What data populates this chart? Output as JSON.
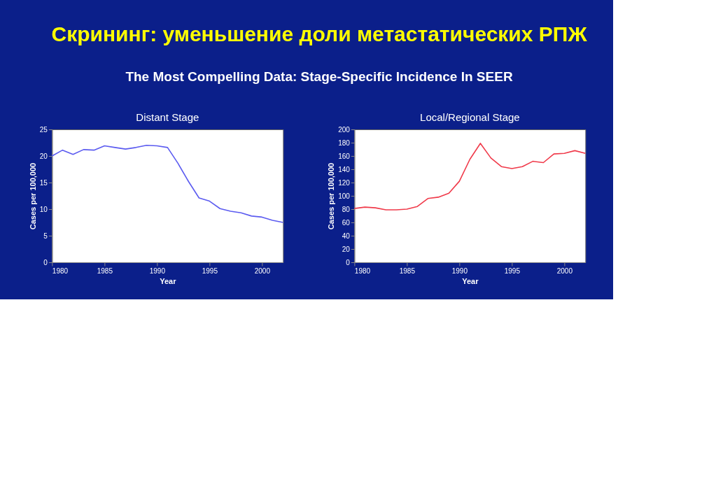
{
  "chart_data": [
    {
      "type": "line",
      "title": "Distant Stage",
      "xlabel": "Year",
      "ylabel": "Cases per 100,000",
      "annotations": [
        "Скрининг: уменьшение доли метастатических РПЖ",
        "The Most Compelling Data: Stage-Specific Incidence In SEER"
      ],
      "x": [
        1980,
        1981,
        1982,
        1983,
        1984,
        1985,
        1986,
        1987,
        1988,
        1989,
        1990,
        1991,
        1992,
        1993,
        1994,
        1995,
        1996,
        1997,
        1998,
        1999,
        2000,
        2001,
        2002
      ],
      "series": [
        {
          "color": "#5b5bf0",
          "values": [
            20.0,
            21.1,
            20.3,
            21.2,
            21.1,
            21.9,
            21.6,
            21.3,
            21.6,
            22.0,
            21.9,
            21.6,
            18.6,
            15.2,
            12.1,
            11.5,
            10.1,
            9.6,
            9.3,
            8.7,
            8.5,
            7.9,
            7.5
          ]
        }
      ],
      "xlim": [
        1980,
        2002
      ],
      "xticks": [
        1980,
        1985,
        1990,
        1995,
        2000
      ],
      "ylim": [
        0,
        25
      ],
      "yticks": [
        0,
        5,
        10,
        15,
        20,
        25
      ],
      "grid": false,
      "marker": "none",
      "line_style": "solid"
    },
    {
      "type": "line",
      "title": "Local/Regional Stage",
      "xlabel": "Year",
      "ylabel": "Cases per 100,000",
      "x": [
        1980,
        1981,
        1982,
        1983,
        1984,
        1985,
        1986,
        1987,
        1988,
        1989,
        1990,
        1991,
        1992,
        1993,
        1994,
        1995,
        1996,
        1997,
        1998,
        1999,
        2000,
        2001,
        2002
      ],
      "series": [
        {
          "color": "#f03a4a",
          "values": [
            81,
            83,
            82,
            79,
            79,
            80,
            84,
            96,
            98,
            104,
            122,
            155,
            179,
            157,
            144,
            141,
            144,
            152,
            150,
            163,
            164,
            168,
            164
          ]
        }
      ],
      "xlim": [
        1980,
        2002
      ],
      "xticks": [
        1980,
        1985,
        1990,
        1995,
        2000
      ],
      "ylim": [
        0,
        200
      ],
      "yticks": [
        0,
        20,
        40,
        60,
        80,
        100,
        120,
        140,
        160,
        180,
        200
      ],
      "grid": false,
      "marker": "none",
      "line_style": "solid"
    }
  ]
}
